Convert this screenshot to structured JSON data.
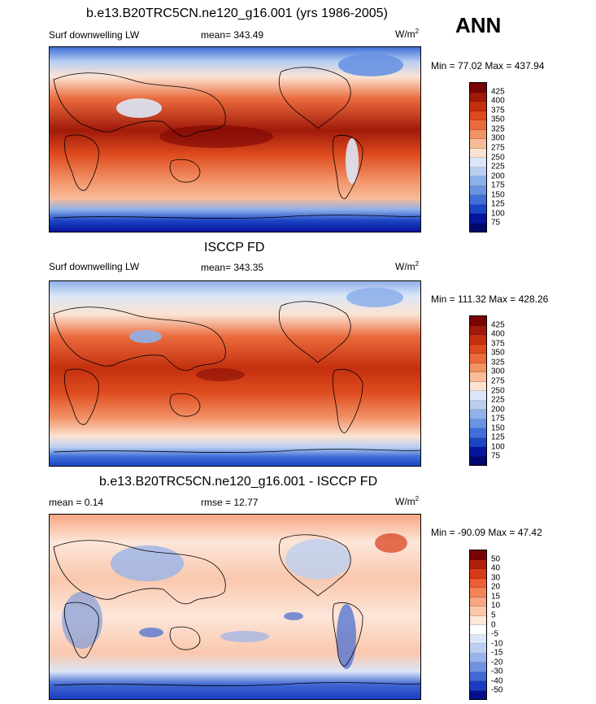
{
  "season": "ANN",
  "panels": [
    {
      "title": "b.e13.B20TRC5CN.ne120_g16.001 (yrs 1986-2005)",
      "left_label": "Surf downwelling LW",
      "center_label": "mean= 343.49",
      "units_base": "W/m",
      "units_exp": "2",
      "minmax": "Min =  77.02 Max = 437.94",
      "levels": [
        "425",
        "400",
        "375",
        "350",
        "325",
        "300",
        "275",
        "250",
        "225",
        "200",
        "175",
        "150",
        "125",
        "100",
        "75"
      ]
    },
    {
      "title": "ISCCP FD",
      "left_label": "Surf downwelling LW",
      "center_label": "mean= 343.35",
      "units_base": "W/m",
      "units_exp": "2",
      "minmax": "Min = 111.32 Max = 428.26",
      "levels": [
        "425",
        "400",
        "375",
        "350",
        "325",
        "300",
        "275",
        "250",
        "225",
        "200",
        "175",
        "150",
        "125",
        "100",
        "75"
      ]
    },
    {
      "title": "b.e13.B20TRC5CN.ne120_g16.001 - ISCCP FD",
      "left_label": "mean =   0.14",
      "center_label": "rmse =  12.77",
      "units_base": "W/m",
      "units_exp": "2",
      "minmax": "Min = -90.09 Max =  47.42",
      "levels": [
        "50",
        "40",
        "30",
        "20",
        "15",
        "10",
        "5",
        "0",
        "-5",
        "-10",
        "-15",
        "-20",
        "-30",
        "-40",
        "-50"
      ]
    }
  ],
  "colors": {
    "abs_scale": [
      "#7a0403",
      "#a01a0a",
      "#c4300f",
      "#dd4a1d",
      "#ea6b3d",
      "#f29266",
      "#f8bb98",
      "#fbe3d3",
      "#dbe7f7",
      "#b8cff1",
      "#8fb1ea",
      "#6993e3",
      "#3f6fd8",
      "#1c45c4",
      "#07149c",
      "#000a6e"
    ],
    "diff_scale": [
      "#7a0403",
      "#b0200c",
      "#d63a16",
      "#ea5f33",
      "#f28458",
      "#f7a782",
      "#fac7ad",
      "#fde6da",
      "#ffffff",
      "#dbe6f6",
      "#bccff0",
      "#98b4e9",
      "#6d92df",
      "#4168d2",
      "#1b3cc0",
      "#050f8e"
    ]
  }
}
